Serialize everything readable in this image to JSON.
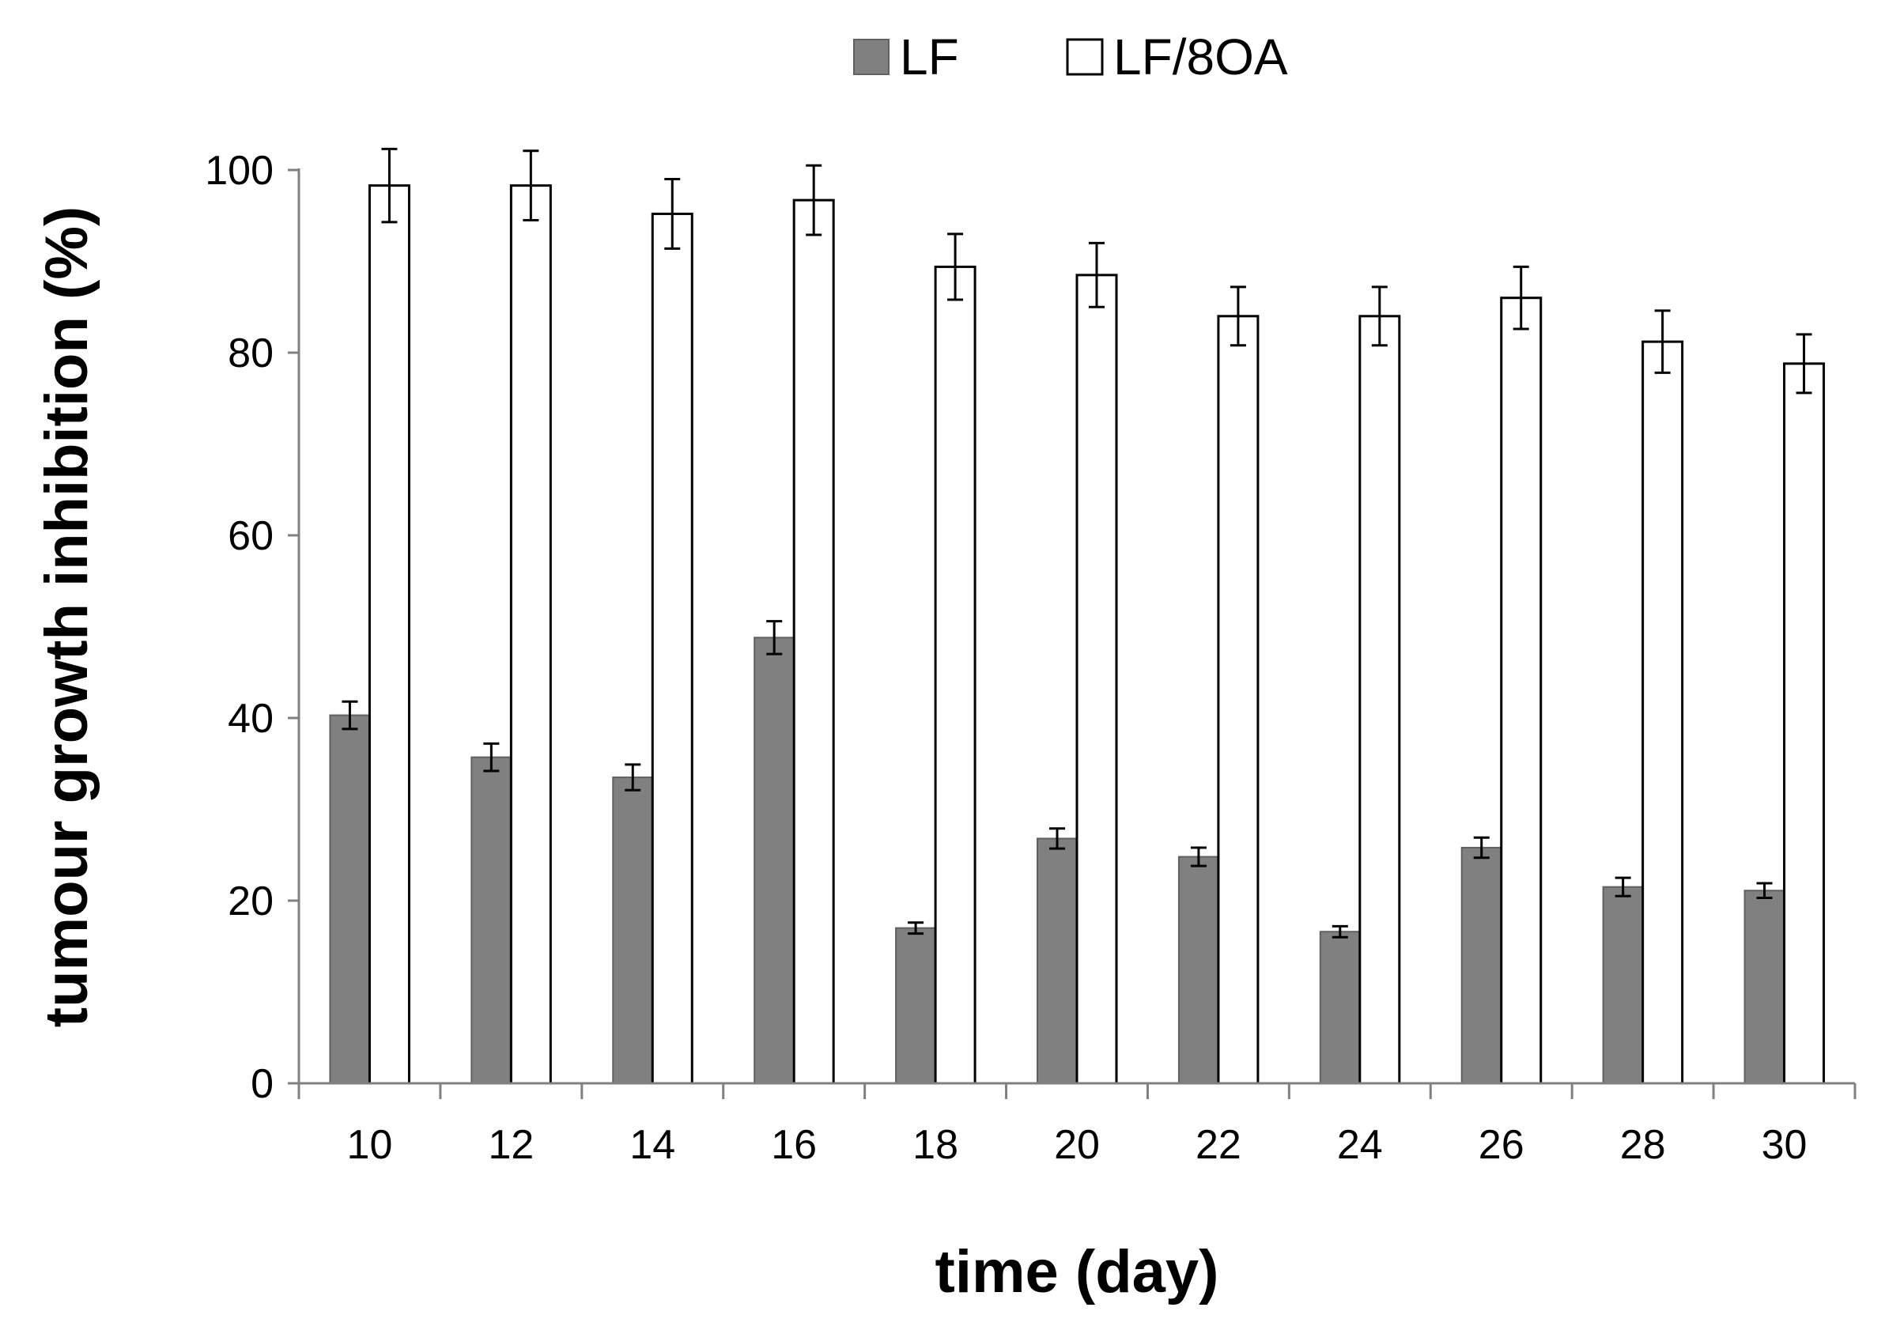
{
  "chart_data": {
    "type": "bar",
    "title": "",
    "xlabel": "time (day)",
    "ylabel": "tumour growth inhibition (%)",
    "ylim": [
      0,
      100
    ],
    "yticks": [
      0,
      20,
      40,
      60,
      80,
      100
    ],
    "grid": false,
    "legend_position": "top-center",
    "categories": [
      "10",
      "12",
      "14",
      "16",
      "18",
      "20",
      "22",
      "24",
      "26",
      "28",
      "30"
    ],
    "series": [
      {
        "name": "LF",
        "fill": "#808080",
        "stroke": "#606060",
        "values": [
          40.3,
          35.7,
          33.5,
          48.8,
          17.0,
          26.8,
          24.8,
          16.6,
          25.8,
          21.5,
          21.1
        ],
        "errors": [
          1.5,
          1.5,
          1.4,
          1.8,
          0.6,
          1.1,
          1.0,
          0.6,
          1.1,
          1.0,
          0.8
        ]
      },
      {
        "name": "LF/8OA",
        "fill": "#ffffff",
        "stroke": "#000000",
        "values": [
          98.3,
          98.3,
          95.2,
          96.7,
          89.4,
          88.5,
          84.0,
          84.0,
          86.0,
          81.2,
          78.8
        ],
        "errors": [
          4.0,
          3.8,
          3.8,
          3.8,
          3.6,
          3.5,
          3.2,
          3.2,
          3.4,
          3.4,
          3.2
        ]
      }
    ]
  }
}
